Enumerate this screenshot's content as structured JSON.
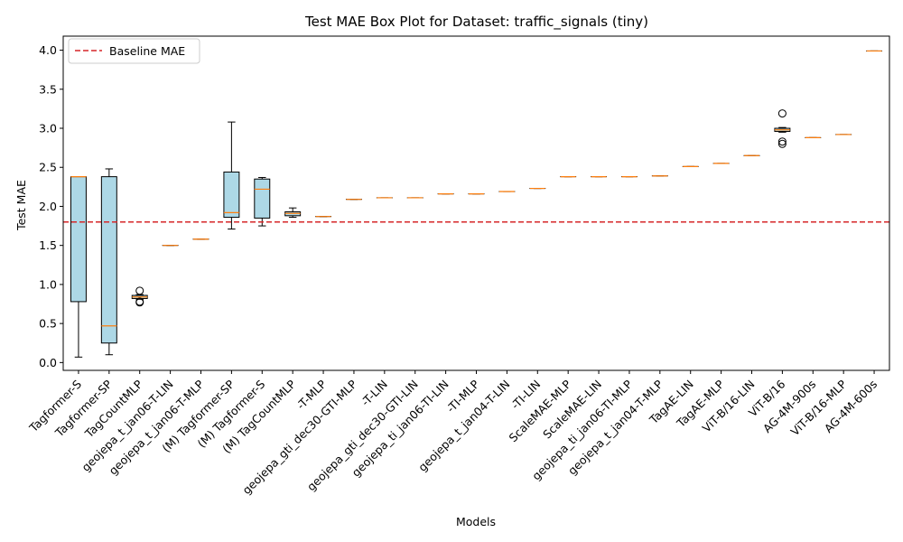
{
  "chart_data": {
    "type": "box",
    "title": "Test MAE Box Plot for Dataset: traffic_signals (tiny)",
    "xlabel": "Models",
    "ylabel": "Test MAE",
    "ylim": [
      -0.1,
      4.18
    ],
    "yticks": [
      "0.0",
      "0.5",
      "1.0",
      "1.5",
      "2.0",
      "2.5",
      "3.0",
      "3.5",
      "4.0"
    ],
    "ytick_values": [
      0.0,
      0.5,
      1.0,
      1.5,
      2.0,
      2.5,
      3.0,
      3.5,
      4.0
    ],
    "grid": false,
    "legend": {
      "placement": "top-left",
      "entries": [
        "Baseline MAE"
      ]
    },
    "baseline": {
      "name": "Baseline MAE",
      "value": 1.8,
      "color": "#d62728",
      "style": "dashed"
    },
    "colors": {
      "box_fill": "#add8e6",
      "median": "#ff7f0e",
      "edge": "#000000"
    },
    "categories": [
      "Tagformer-S",
      "Tagformer-SP",
      "TagCountMLP",
      "geojepa_t_jan06-T-LIN",
      "geojepa_t_jan06-T-MLP",
      "(M) Tagformer-SP",
      "(M) Tagformer-S",
      "(M) TagCountMLP",
      "-T-MLP",
      "geojepa_gti_dec30-GTI-MLP",
      "-T-LIN",
      "geojepa_gti_dec30-GTI-LIN",
      "geojepa_ti_jan06-TI-LIN",
      "-TI-MLP",
      "geojepa_t_jan04-T-LIN",
      "-TI-LIN",
      "ScaleMAE-MLP",
      "ScaleMAE-LIN",
      "geojepa_ti_jan06-TI-MLP",
      "geojepa_t_jan04-T-MLP",
      "TagAE-LIN",
      "TagAE-MLP",
      "ViT-B/16-LIN",
      "ViT-B/16",
      "AG-4M-900s",
      "ViT-B/16-MLP",
      "AG-4M-600s"
    ],
    "boxes": [
      {
        "min": 0.07,
        "q1": 0.78,
        "median": 2.38,
        "q3": 2.38,
        "max": 2.38,
        "outliers": []
      },
      {
        "min": 0.1,
        "q1": 0.25,
        "median": 0.47,
        "q3": 2.38,
        "max": 2.48,
        "outliers": []
      },
      {
        "min": 0.81,
        "q1": 0.82,
        "median": 0.84,
        "q3": 0.86,
        "max": 0.87,
        "outliers": [
          0.92,
          0.78,
          0.77
        ]
      },
      {
        "min": 1.5,
        "q1": 1.5,
        "median": 1.5,
        "q3": 1.5,
        "max": 1.5,
        "outliers": []
      },
      {
        "min": 1.58,
        "q1": 1.58,
        "median": 1.58,
        "q3": 1.58,
        "max": 1.58,
        "outliers": []
      },
      {
        "min": 1.71,
        "q1": 1.86,
        "median": 1.92,
        "q3": 2.44,
        "max": 3.08,
        "outliers": []
      },
      {
        "min": 1.75,
        "q1": 1.85,
        "median": 2.22,
        "q3": 2.35,
        "max": 2.37,
        "outliers": []
      },
      {
        "min": 1.86,
        "q1": 1.88,
        "median": 1.91,
        "q3": 1.93,
        "max": 1.98,
        "outliers": []
      },
      {
        "min": 1.87,
        "q1": 1.87,
        "median": 1.87,
        "q3": 1.87,
        "max": 1.87,
        "outliers": []
      },
      {
        "min": 2.09,
        "q1": 2.09,
        "median": 2.09,
        "q3": 2.09,
        "max": 2.09,
        "outliers": []
      },
      {
        "min": 2.11,
        "q1": 2.11,
        "median": 2.11,
        "q3": 2.11,
        "max": 2.11,
        "outliers": []
      },
      {
        "min": 2.11,
        "q1": 2.11,
        "median": 2.11,
        "q3": 2.11,
        "max": 2.11,
        "outliers": []
      },
      {
        "min": 2.16,
        "q1": 2.16,
        "median": 2.16,
        "q3": 2.16,
        "max": 2.16,
        "outliers": []
      },
      {
        "min": 2.16,
        "q1": 2.16,
        "median": 2.16,
        "q3": 2.16,
        "max": 2.16,
        "outliers": []
      },
      {
        "min": 2.19,
        "q1": 2.19,
        "median": 2.19,
        "q3": 2.19,
        "max": 2.19,
        "outliers": []
      },
      {
        "min": 2.23,
        "q1": 2.23,
        "median": 2.23,
        "q3": 2.23,
        "max": 2.23,
        "outliers": []
      },
      {
        "min": 2.38,
        "q1": 2.38,
        "median": 2.38,
        "q3": 2.38,
        "max": 2.38,
        "outliers": []
      },
      {
        "min": 2.38,
        "q1": 2.38,
        "median": 2.38,
        "q3": 2.38,
        "max": 2.38,
        "outliers": []
      },
      {
        "min": 2.38,
        "q1": 2.38,
        "median": 2.38,
        "q3": 2.38,
        "max": 2.38,
        "outliers": []
      },
      {
        "min": 2.39,
        "q1": 2.39,
        "median": 2.39,
        "q3": 2.39,
        "max": 2.39,
        "outliers": []
      },
      {
        "min": 2.51,
        "q1": 2.51,
        "median": 2.51,
        "q3": 2.51,
        "max": 2.51,
        "outliers": []
      },
      {
        "min": 2.55,
        "q1": 2.55,
        "median": 2.55,
        "q3": 2.55,
        "max": 2.55,
        "outliers": []
      },
      {
        "min": 2.65,
        "q1": 2.65,
        "median": 2.65,
        "q3": 2.65,
        "max": 2.65,
        "outliers": []
      },
      {
        "min": 2.95,
        "q1": 2.96,
        "median": 2.98,
        "q3": 3.0,
        "max": 3.01,
        "outliers": [
          3.19,
          2.83,
          2.8
        ]
      },
      {
        "min": 2.88,
        "q1": 2.88,
        "median": 2.88,
        "q3": 2.88,
        "max": 2.88,
        "outliers": []
      },
      {
        "min": 2.92,
        "q1": 2.92,
        "median": 2.92,
        "q3": 2.92,
        "max": 2.92,
        "outliers": []
      },
      {
        "min": 3.99,
        "q1": 3.99,
        "median": 3.99,
        "q3": 3.99,
        "max": 3.99,
        "outliers": []
      }
    ]
  }
}
